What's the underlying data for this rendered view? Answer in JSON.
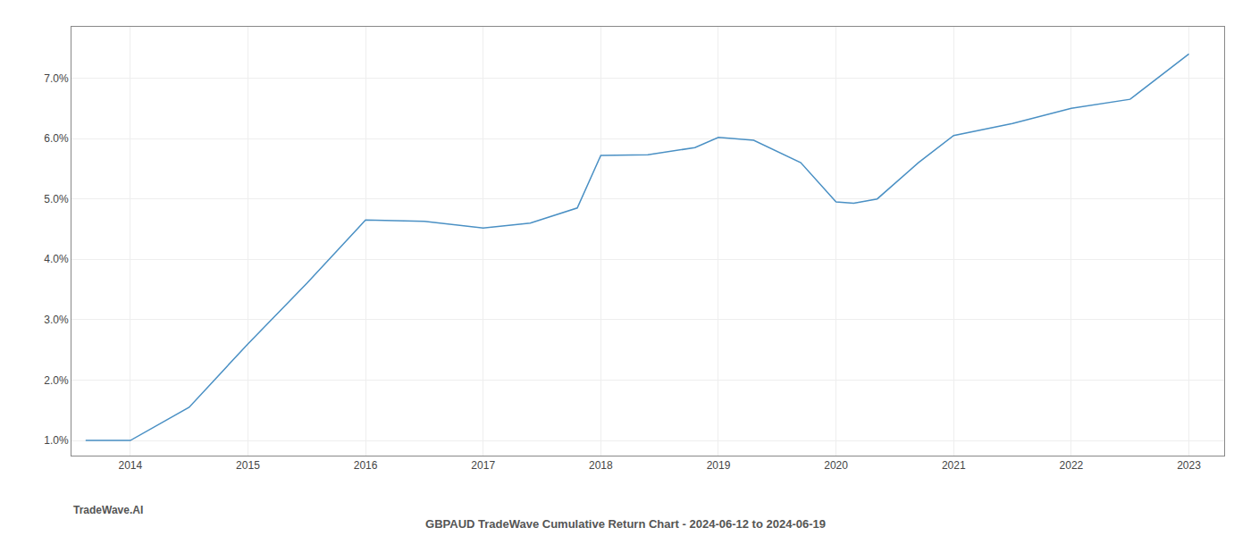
{
  "chart_data": {
    "type": "line",
    "title": "GBPAUD TradeWave Cumulative Return Chart - 2024-06-12 to 2024-06-19",
    "annotations": [
      "TradeWave.AI"
    ],
    "x": [
      2013.62,
      2014.0,
      2014.5,
      2015.0,
      2015.5,
      2016.0,
      2016.5,
      2017.0,
      2017.4,
      2017.8,
      2018.0,
      2018.4,
      2018.8,
      2019.0,
      2019.3,
      2019.7,
      2020.0,
      2020.15,
      2020.35,
      2020.7,
      2021.0,
      2021.5,
      2022.0,
      2022.5,
      2023.0
    ],
    "values": [
      1.0,
      1.0,
      1.55,
      2.6,
      3.6,
      4.65,
      4.63,
      4.52,
      4.6,
      4.85,
      5.72,
      5.73,
      5.85,
      6.02,
      5.97,
      5.6,
      4.95,
      4.93,
      5.0,
      5.6,
      6.05,
      6.25,
      6.5,
      6.65,
      7.4
    ],
    "color": "#4a90c4",
    "xlim": [
      2013.5,
      2023.3
    ],
    "ylim": [
      0.75,
      7.85
    ],
    "xticks": [
      2014,
      2015,
      2016,
      2017,
      2018,
      2019,
      2020,
      2021,
      2022,
      2023
    ],
    "yticks": [
      {
        "value": 1.0,
        "label": "1.0%"
      },
      {
        "value": 2.0,
        "label": "2.0%"
      },
      {
        "value": 3.0,
        "label": "3.0%"
      },
      {
        "value": 4.0,
        "label": "4.0%"
      },
      {
        "value": 5.0,
        "label": "5.0%"
      },
      {
        "value": 6.0,
        "label": "6.0%"
      },
      {
        "value": 7.0,
        "label": "7.0%"
      }
    ],
    "grid": true
  }
}
